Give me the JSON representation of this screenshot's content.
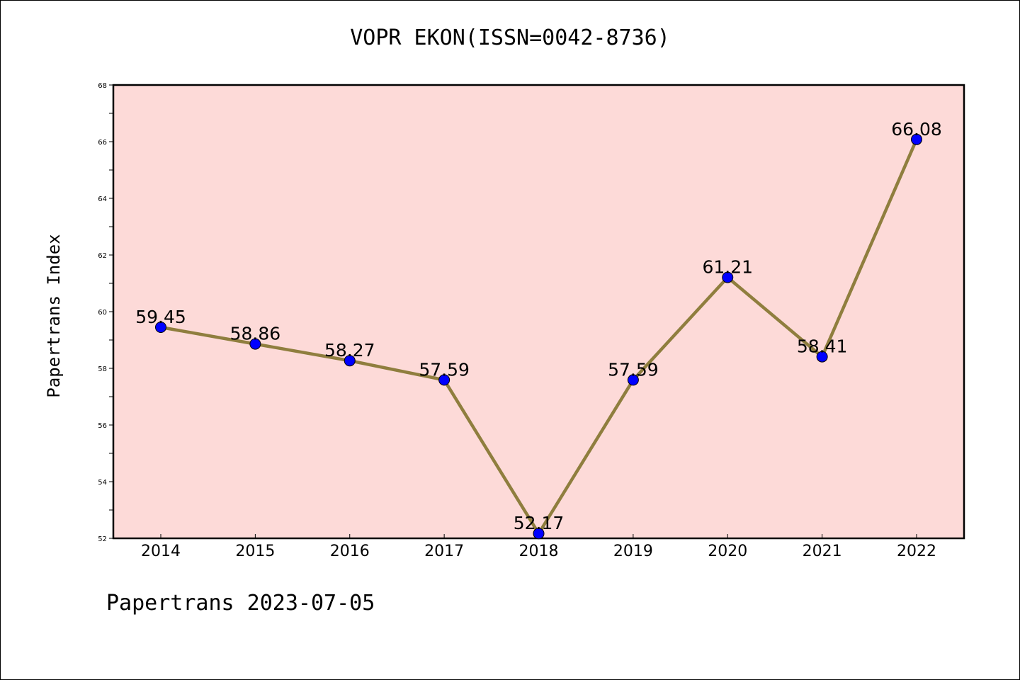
{
  "chart_data": {
    "type": "line",
    "title": "VOPR EKON(ISSN=0042-8736)",
    "ylabel": "Papertrans Index",
    "xlabel": "",
    "categories": [
      "2014",
      "2015",
      "2016",
      "2017",
      "2018",
      "2019",
      "2020",
      "2021",
      "2022"
    ],
    "series": [
      {
        "values": [
          59.45,
          58.86,
          58.27,
          57.59,
          52.17,
          57.59,
          61.21,
          58.41,
          66.08
        ]
      }
    ],
    "data_labels": [
      "59.45",
      "58.86",
      "58.27",
      "57.59",
      "52.17",
      "57.59",
      "61.21",
      "58.41",
      "66.08"
    ],
    "ylim": [
      52,
      68
    ],
    "yticks": [
      52,
      54,
      56,
      58,
      60,
      62,
      64,
      66,
      68
    ],
    "grid": false,
    "colors": {
      "plot_background": "#fddad8",
      "line": "#8f7e3e",
      "marker": "#0000ff"
    }
  },
  "footer": "Papertrans 2023-07-05"
}
